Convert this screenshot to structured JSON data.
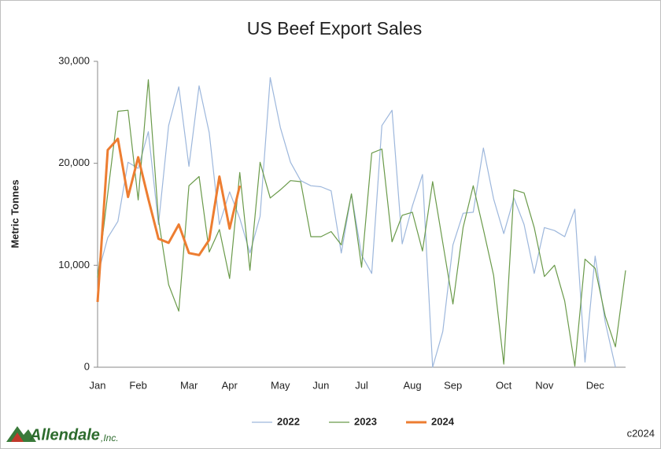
{
  "chart_data": {
    "type": "line",
    "title": "US Beef Export Sales",
    "y_label": "Metric Tonnes",
    "categories": [
      "Jan",
      null,
      null,
      null,
      "Feb",
      null,
      null,
      null,
      null,
      "Mar",
      null,
      null,
      null,
      "Apr",
      null,
      null,
      null,
      null,
      "May",
      null,
      null,
      null,
      "Jun",
      null,
      null,
      null,
      "Jul",
      null,
      null,
      null,
      null,
      "Aug",
      null,
      null,
      null,
      "Sep",
      null,
      null,
      null,
      null,
      "Oct",
      null,
      null,
      null,
      "Nov",
      null,
      null,
      null,
      null,
      "Dec",
      null,
      null,
      null
    ],
    "series": [
      {
        "name": "2022",
        "color": "#9db7dc",
        "width": 1.2,
        "values": [
          9000,
          12700,
          14300,
          20100,
          19500,
          23100,
          14000,
          23700,
          27500,
          19700,
          27600,
          23000,
          14000,
          17200,
          14600,
          11200,
          14800,
          28400,
          23500,
          20100,
          18300,
          17800,
          17700,
          17300,
          11200,
          17000,
          11000,
          9200,
          23700,
          25200,
          12100,
          15800,
          18900,
          0,
          3500,
          12000,
          15100,
          15200,
          21500,
          16500,
          13100,
          16600,
          14000,
          9200,
          13700,
          13400,
          12800,
          15500,
          500,
          10900,
          4400,
          0,
          null
        ]
      },
      {
        "name": "2023",
        "color": "#6a9a4a",
        "width": 1.2,
        "values": [
          8800,
          17000,
          25100,
          25200,
          16400,
          28200,
          14500,
          8100,
          5500,
          17800,
          18700,
          11300,
          13500,
          8700,
          19100,
          9500,
          20100,
          16600,
          17400,
          18300,
          18200,
          12800,
          12800,
          13300,
          12000,
          17000,
          9800,
          21000,
          21400,
          12300,
          14900,
          15200,
          11400,
          18200,
          12200,
          6200,
          13700,
          17800,
          13500,
          9000,
          300,
          17400,
          17100,
          13700,
          8900,
          10000,
          6500,
          100,
          10600,
          9700,
          5000,
          2000,
          9500
        ]
      },
      {
        "name": "2024",
        "color": "#ed7d31",
        "width": 3,
        "values": [
          6400,
          21300,
          22400,
          16700,
          20600,
          16500,
          12600,
          12200,
          14000,
          11200,
          11000,
          12500,
          18700,
          13600,
          17800,
          null,
          null,
          null,
          null,
          null,
          null,
          null,
          null,
          null,
          null,
          null,
          null,
          null,
          null,
          null,
          null,
          null,
          null,
          null,
          null,
          null,
          null,
          null,
          null,
          null,
          null,
          null,
          null,
          null,
          null,
          null,
          null,
          null,
          null,
          null,
          null,
          null,
          null
        ]
      }
    ],
    "ylim": [
      0,
      30000
    ],
    "yticks": [
      0,
      {
        "value": 10000,
        "label": "10,000"
      },
      {
        "value": 20000,
        "label": "20,000"
      },
      {
        "value": 30000,
        "label": "30,000"
      }
    ],
    "legend": "bottom",
    "logo": "Allendale",
    "logo_suffix": ",Inc.",
    "copyright": "c2024"
  }
}
